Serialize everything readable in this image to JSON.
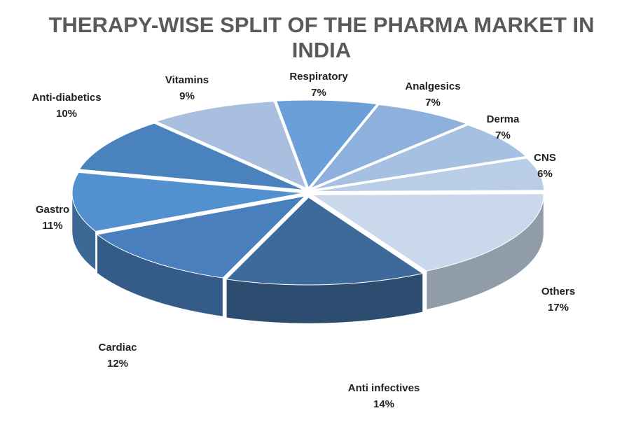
{
  "chart_data": {
    "type": "pie3d",
    "title": "THERAPY-WISE SPLIT OF THE PHARMA MARKET IN INDIA",
    "categories": [
      "Respiratory",
      "Analgesics",
      "Derma",
      "CNS",
      "Others",
      "Anti infectives",
      "Cardiac",
      "Gastro",
      "Anti-diabetics",
      "Vitamins"
    ],
    "values": [
      7,
      7,
      7,
      6,
      17,
      14,
      12,
      11,
      10,
      9
    ],
    "value_labels": [
      "7%",
      "7%",
      "7%",
      "6%",
      "17%",
      "14%",
      "12%",
      "11%",
      "10%",
      "9%"
    ],
    "colors": [
      "#6a9fd8",
      "#8db0dc",
      "#a5c0e0",
      "#b9cde7",
      "#cad8eb",
      "#3d6a9b",
      "#4a7fbd",
      "#5390cf",
      "#4a82be",
      "#a8bfdf"
    ]
  }
}
